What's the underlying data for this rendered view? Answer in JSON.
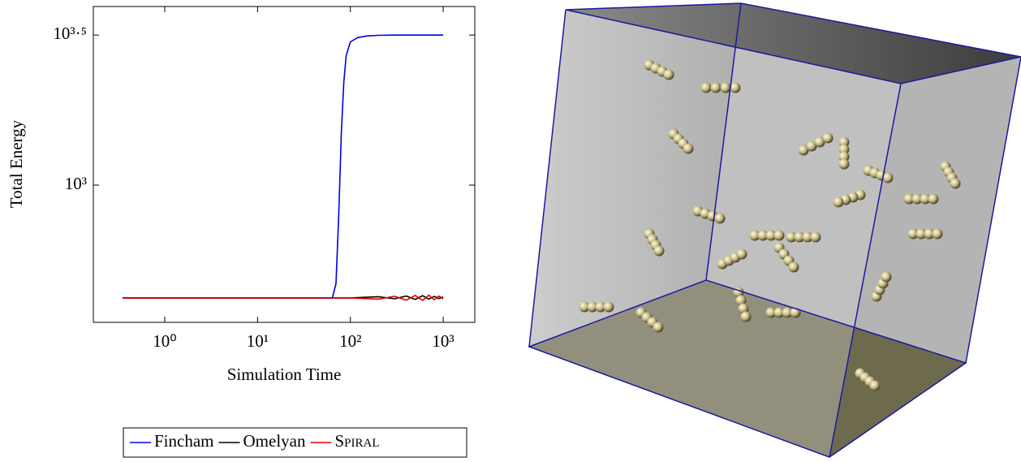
{
  "chart_data": {
    "type": "line",
    "xlabel": "Simulation Time",
    "ylabel": "Total Energy",
    "xscale": "log",
    "yscale": "log",
    "xlim": [
      0.17,
      2190
    ],
    "ylim": [
      349,
      3936
    ],
    "xticks": [
      {
        "value": 1,
        "label": "10⁰"
      },
      {
        "value": 10,
        "label": "10¹"
      },
      {
        "value": 100,
        "label": "10²"
      },
      {
        "value": 1000,
        "label": "10³"
      }
    ],
    "yticks": [
      {
        "value": 1000,
        "label": "10³"
      },
      {
        "value": 3162.3,
        "label": "10³·⁵"
      }
    ],
    "legend": "bottom",
    "series": [
      {
        "name": "Fincham",
        "color": "#0000e0",
        "x": [
          0.35,
          1,
          10,
          50,
          64,
          70,
          75,
          80,
          85,
          90,
          100,
          120,
          150,
          200,
          300,
          1000
        ],
        "values": [
          421,
          421,
          421,
          421,
          421,
          470,
          800,
          1500,
          2200,
          2700,
          3000,
          3100,
          3140,
          3155,
          3162,
          3162
        ]
      },
      {
        "name": "Omelyan",
        "color": "#000000",
        "x": [
          0.35,
          1,
          10,
          100,
          200,
          300,
          400,
          500,
          600,
          700,
          800,
          900,
          1000
        ],
        "values": [
          421,
          421,
          421,
          421,
          425,
          418,
          427,
          416,
          428,
          417,
          426,
          419,
          424
        ]
      },
      {
        "name": "Spiral",
        "color": "#e00000",
        "x": [
          0.35,
          1,
          10,
          100,
          200,
          300,
          400,
          500,
          600,
          700,
          800,
          900,
          1000
        ],
        "values": [
          421,
          421,
          421,
          421,
          417,
          426,
          414,
          429,
          413,
          430,
          415,
          427,
          418
        ]
      }
    ]
  }
}
